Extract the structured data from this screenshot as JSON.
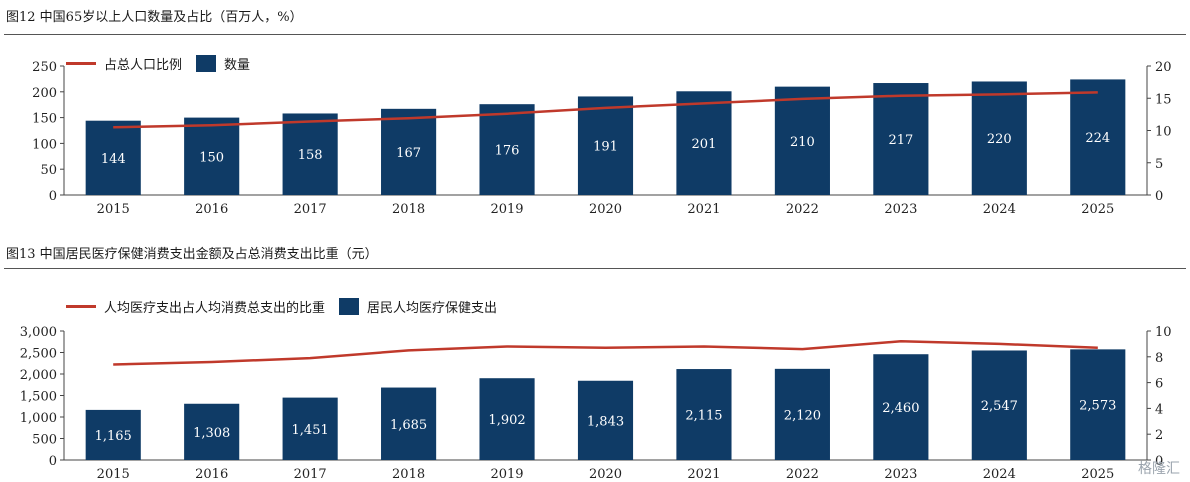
{
  "figure1": {
    "title": "图12 中国65岁以上人口数量及占比（百万人，%）",
    "legend": {
      "line_label": "占总人口比例",
      "bar_label": "数量"
    }
  },
  "figure2": {
    "title": "图13 中国居民医疗保健消费支出金额及占总消费支出比重（元）",
    "legend": {
      "line_label": "人均医疗支出占人均消费总支出的比重",
      "bar_label": "居民人均医疗保健支出"
    }
  },
  "watermark": "格隆汇",
  "colors": {
    "bar": "#0f3b66",
    "line": "#c0392b",
    "bar_label": "#ffffff"
  },
  "chart_data": [
    {
      "type": "bar",
      "categories": [
        "2015",
        "2016",
        "2017",
        "2018",
        "2019",
        "2020",
        "2021",
        "2022",
        "2023",
        "2024",
        "2025"
      ],
      "series": [
        {
          "name": "数量",
          "axis": "left",
          "type": "bar",
          "values": [
            144,
            150,
            158,
            167,
            176,
            191,
            201,
            210,
            217,
            220,
            224
          ],
          "labels": [
            "144",
            "150",
            "158",
            "167",
            "176",
            "191",
            "201",
            "210",
            "217",
            "220",
            "224"
          ]
        },
        {
          "name": "占总人口比例",
          "axis": "right",
          "type": "line",
          "values": [
            10.5,
            10.8,
            11.4,
            11.9,
            12.6,
            13.5,
            14.2,
            14.9,
            15.4,
            15.6,
            15.9
          ]
        }
      ],
      "yleft": {
        "ylim": [
          0,
          250
        ],
        "ticks": [
          "0",
          "50",
          "100",
          "150",
          "200",
          "250"
        ]
      },
      "yright": {
        "ylim": [
          0,
          20
        ],
        "ticks": [
          "0",
          "5",
          "10",
          "15",
          "20"
        ]
      },
      "legend_position": "top-left",
      "grid": false
    },
    {
      "type": "bar",
      "categories": [
        "2015",
        "2016",
        "2017",
        "2018",
        "2019",
        "2020",
        "2021",
        "2022",
        "2023",
        "2024",
        "2025"
      ],
      "series": [
        {
          "name": "居民人均医疗保健支出",
          "axis": "left",
          "type": "bar",
          "values": [
            1165,
            1308,
            1451,
            1685,
            1902,
            1843,
            2115,
            2120,
            2460,
            2547,
            2573
          ],
          "labels": [
            "1,165",
            "1,308",
            "1,451",
            "1,685",
            "1,902",
            "1,843",
            "2,115",
            "2,120",
            "2,460",
            "2,547",
            "2,573"
          ]
        },
        {
          "name": "人均医疗支出占人均消费总支出的比重",
          "axis": "right",
          "type": "line",
          "values": [
            7.4,
            7.6,
            7.9,
            8.5,
            8.8,
            8.7,
            8.8,
            8.6,
            9.2,
            9.0,
            8.7
          ]
        }
      ],
      "yleft": {
        "ylim": [
          0,
          3000
        ],
        "ticks": [
          "0",
          "500",
          "1,000",
          "1,500",
          "2,000",
          "2,500",
          "3,000"
        ]
      },
      "yright": {
        "ylim": [
          0,
          10
        ],
        "ticks": [
          "0",
          "2",
          "4",
          "6",
          "8",
          "10"
        ]
      },
      "legend_position": "top-left",
      "grid": false
    }
  ]
}
